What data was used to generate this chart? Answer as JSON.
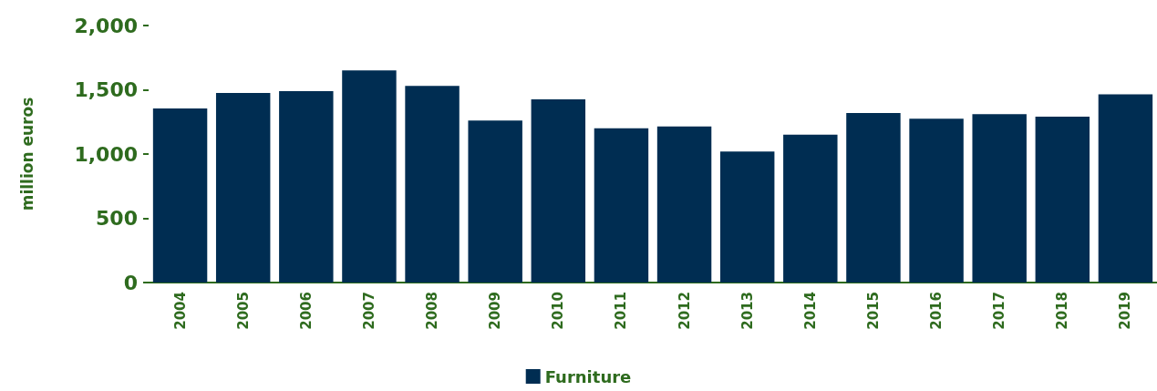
{
  "chart_data": {
    "type": "bar",
    "ylabel": "million euros",
    "categories": [
      "2004",
      "2005",
      "2006",
      "2007",
      "2008",
      "2009",
      "2010",
      "2011",
      "2012",
      "2013",
      "2014",
      "2015",
      "2016",
      "2017",
      "2018",
      "2019"
    ],
    "series": [
      {
        "name": "Furniture",
        "color": "#002d52",
        "values": [
          1355,
          1475,
          1490,
          1650,
          1530,
          1260,
          1425,
          1200,
          1215,
          1020,
          1150,
          1320,
          1275,
          1310,
          1290,
          1465
        ]
      }
    ],
    "ylim": [
      0,
      2000
    ],
    "yticks": [
      {
        "value": 0,
        "label": "0"
      },
      {
        "value": 500,
        "label": "500"
      },
      {
        "value": 1000,
        "label": "1,000"
      },
      {
        "value": 1500,
        "label": "1,500"
      },
      {
        "value": 2000,
        "label": "2,000"
      }
    ],
    "grid": false,
    "legend": "bottom"
  }
}
